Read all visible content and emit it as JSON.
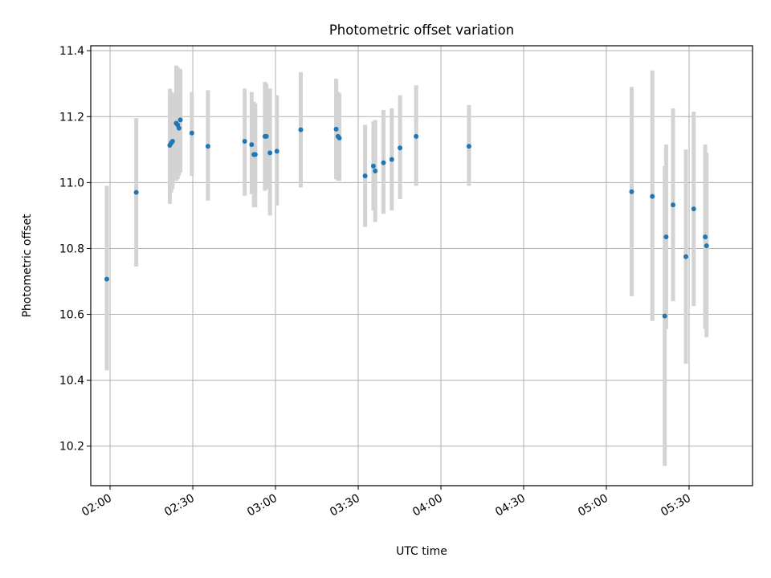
{
  "chart_data": {
    "type": "scatter",
    "title": "Photometric offset variation",
    "xlabel": "UTC time",
    "ylabel": "Photometric offset",
    "x_tick_labels": [
      "02:00",
      "02:30",
      "03:00",
      "03:30",
      "04:00",
      "04:30",
      "05:00",
      "05:30"
    ],
    "y_tick_labels": [
      "10.2",
      "10.4",
      "10.6",
      "10.8",
      "11.0",
      "11.2",
      "11.4"
    ],
    "x_ticks": [
      "02:00",
      "02:30",
      "03:00",
      "03:30",
      "04:00",
      "04:30",
      "05:00",
      "05:30"
    ],
    "y_ticks": [
      10.2,
      10.4,
      10.6,
      10.8,
      11.0,
      11.2,
      11.4
    ],
    "xlim": [
      "01:53",
      "05:53"
    ],
    "ylim": [
      10.08,
      11.415
    ],
    "grid": true,
    "point_color": "#1f77b4",
    "errorbar_color": "#d3d3d3",
    "series": [
      {
        "points": [
          {
            "x": "01:58:50",
            "y": 10.707,
            "low": 10.43,
            "high": 10.99
          },
          {
            "x": "02:09:30",
            "y": 10.97,
            "low": 10.745,
            "high": 11.195
          },
          {
            "x": "02:21:40",
            "y": 11.113,
            "low": 10.935,
            "high": 11.285
          },
          {
            "x": "02:22:10",
            "y": 11.12,
            "low": 10.97,
            "high": 11.275
          },
          {
            "x": "02:22:40",
            "y": 11.125,
            "low": 10.98,
            "high": 11.27
          },
          {
            "x": "02:24:00",
            "y": 11.18,
            "low": 11.005,
            "high": 11.355
          },
          {
            "x": "02:24:30",
            "y": 11.175,
            "low": 11.01,
            "high": 11.35
          },
          {
            "x": "02:25:00",
            "y": 11.165,
            "low": 11.02,
            "high": 11.345
          },
          {
            "x": "02:25:30",
            "y": 11.19,
            "low": 11.03,
            "high": 11.345
          },
          {
            "x": "02:29:40",
            "y": 11.15,
            "low": 11.02,
            "high": 11.275
          },
          {
            "x": "02:35:30",
            "y": 11.11,
            "low": 10.945,
            "high": 11.28
          },
          {
            "x": "02:48:50",
            "y": 11.125,
            "low": 10.96,
            "high": 11.285
          },
          {
            "x": "02:51:20",
            "y": 11.115,
            "low": 10.965,
            "high": 11.275
          },
          {
            "x": "02:52:10",
            "y": 11.085,
            "low": 10.925,
            "high": 11.245
          },
          {
            "x": "02:52:40",
            "y": 11.085,
            "low": 10.925,
            "high": 11.24
          },
          {
            "x": "02:56:10",
            "y": 11.14,
            "low": 10.975,
            "high": 11.305
          },
          {
            "x": "02:56:40",
            "y": 11.14,
            "low": 10.98,
            "high": 11.3
          },
          {
            "x": "02:58:00",
            "y": 11.09,
            "low": 10.9,
            "high": 11.285
          },
          {
            "x": "03:00:30",
            "y": 11.095,
            "low": 10.93,
            "high": 11.265
          },
          {
            "x": "03:09:10",
            "y": 11.16,
            "low": 10.985,
            "high": 11.335
          },
          {
            "x": "03:22:00",
            "y": 11.162,
            "low": 11.01,
            "high": 11.315
          },
          {
            "x": "03:22:40",
            "y": 11.14,
            "low": 11.005,
            "high": 11.275
          },
          {
            "x": "03:23:10",
            "y": 11.135,
            "low": 11.005,
            "high": 11.27
          },
          {
            "x": "03:32:30",
            "y": 11.02,
            "low": 10.865,
            "high": 11.175
          },
          {
            "x": "03:35:30",
            "y": 11.05,
            "low": 10.915,
            "high": 11.185
          },
          {
            "x": "03:36:10",
            "y": 11.035,
            "low": 10.88,
            "high": 11.19
          },
          {
            "x": "03:39:10",
            "y": 11.06,
            "low": 10.905,
            "high": 11.22
          },
          {
            "x": "03:42:10",
            "y": 11.07,
            "low": 10.915,
            "high": 11.225
          },
          {
            "x": "03:45:10",
            "y": 11.105,
            "low": 10.95,
            "high": 11.265
          },
          {
            "x": "03:51:00",
            "y": 11.14,
            "low": 10.99,
            "high": 11.295
          },
          {
            "x": "04:10:10",
            "y": 11.11,
            "low": 10.99,
            "high": 11.235
          },
          {
            "x": "05:09:10",
            "y": 10.972,
            "low": 10.655,
            "high": 11.29
          },
          {
            "x": "05:16:40",
            "y": 10.958,
            "low": 10.58,
            "high": 11.34
          },
          {
            "x": "05:21:10",
            "y": 10.595,
            "low": 10.14,
            "high": 11.05
          },
          {
            "x": "05:21:40",
            "y": 10.835,
            "low": 10.555,
            "high": 11.115
          },
          {
            "x": "05:24:10",
            "y": 10.932,
            "low": 10.64,
            "high": 11.225
          },
          {
            "x": "05:28:50",
            "y": 10.775,
            "low": 10.45,
            "high": 11.1
          },
          {
            "x": "05:31:40",
            "y": 10.92,
            "low": 10.625,
            "high": 11.215
          },
          {
            "x": "05:35:50",
            "y": 10.835,
            "low": 10.555,
            "high": 11.115
          },
          {
            "x": "05:36:20",
            "y": 10.808,
            "low": 10.53,
            "high": 11.09
          }
        ]
      }
    ]
  }
}
